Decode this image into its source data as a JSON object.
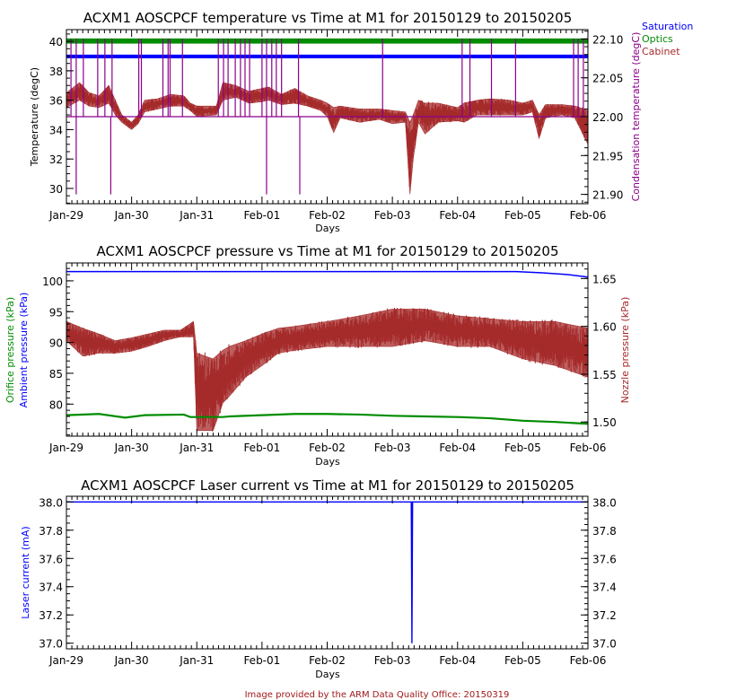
{
  "footer": "Image provided by the ARM Data Quality Office: 20150319",
  "colors": {
    "saturation": "#0000ff",
    "optics": "#008c00",
    "cabinet": "#a52a2a",
    "condensation": "#8b008b",
    "ambient": "#0000ff",
    "orifice": "#008c00",
    "nozzle": "#a52a2a",
    "laser": "#0000ff",
    "footer": "#a01818"
  },
  "chart_data": [
    {
      "type": "line",
      "title": "ACXM1 AOSCPCF temperature vs Time at M1 for 20150129 to 20150205",
      "xlabel": "Days",
      "ylabel": "Temperature (degC)",
      "y2label": "Condensation temperature (degC)",
      "xticks": [
        "Jan-29",
        "Jan-30",
        "Jan-31",
        "Feb-01",
        "Feb-02",
        "Feb-03",
        "Feb-04",
        "Feb-05",
        "Feb-06"
      ],
      "xlim": [
        0,
        8
      ],
      "ylim": [
        28.96,
        40.8
      ],
      "yticks": [
        "30",
        "32",
        "34",
        "36",
        "38",
        "40"
      ],
      "y2lim": [
        21.888,
        22.112
      ],
      "y2ticks": [
        "21.90",
        "21.95",
        "22.00",
        "22.05",
        "22.10"
      ],
      "legend": [
        "Saturation",
        "Optics",
        "Cabinet"
      ],
      "legend_placement": "top-right outside",
      "series": {
        "saturation_band": [
          38.85,
          39.1
        ],
        "optics_band": [
          39.85,
          40.2
        ],
        "cabinet": [
          [
            0,
            35.5,
            36.5
          ],
          [
            0.2,
            36,
            37.2
          ],
          [
            0.35,
            35.6,
            36.5
          ],
          [
            0.5,
            35.5,
            36.3
          ],
          [
            0.65,
            35.8,
            37
          ],
          [
            0.75,
            35,
            36
          ],
          [
            0.85,
            34.5,
            35
          ],
          [
            1.0,
            34,
            34.5
          ],
          [
            1.1,
            34.4,
            35
          ],
          [
            1.2,
            35.2,
            36
          ],
          [
            1.4,
            35.4,
            36.1
          ],
          [
            1.6,
            35.6,
            36.4
          ],
          [
            1.8,
            35.6,
            36.3
          ],
          [
            1.9,
            35.3,
            35.8
          ],
          [
            2.0,
            34.9,
            35.6
          ],
          [
            2.3,
            35,
            35.6
          ],
          [
            2.4,
            36,
            37.2
          ],
          [
            2.6,
            36.2,
            37
          ],
          [
            2.8,
            35.8,
            36.6
          ],
          [
            3.0,
            35.9,
            36.8
          ],
          [
            3.1,
            36,
            36.9
          ],
          [
            3.3,
            35.7,
            36.4
          ],
          [
            3.5,
            35.8,
            36.8
          ],
          [
            3.7,
            35.6,
            36.3
          ],
          [
            3.9,
            35.3,
            36
          ],
          [
            4.0,
            34.9,
            35.8
          ],
          [
            4.1,
            33.8,
            35.5
          ],
          [
            4.2,
            34.8,
            35.6
          ],
          [
            4.5,
            34.5,
            35.4
          ],
          [
            4.8,
            34.7,
            35.4
          ],
          [
            5.0,
            34.4,
            35.3
          ],
          [
            5.2,
            34.5,
            35.2
          ],
          [
            5.27,
            29.6,
            34.5
          ],
          [
            5.32,
            32,
            35
          ],
          [
            5.4,
            34.5,
            36
          ],
          [
            5.5,
            33.7,
            35.8
          ],
          [
            5.7,
            34.5,
            35.8
          ],
          [
            6.0,
            34.6,
            35.5
          ],
          [
            6.1,
            34.5,
            35.8
          ],
          [
            6.3,
            35,
            36
          ],
          [
            6.5,
            35,
            36.1
          ],
          [
            6.8,
            35,
            36
          ],
          [
            7.0,
            35,
            35.8
          ],
          [
            7.15,
            35.2,
            36
          ],
          [
            7.25,
            33.4,
            35
          ],
          [
            7.35,
            34.8,
            35.7
          ],
          [
            7.6,
            35,
            35.7
          ],
          [
            7.8,
            34.8,
            35.6
          ],
          [
            8.0,
            33,
            35.3
          ]
        ],
        "condensation_baseline": 22.0,
        "condensation_spikes_up": [
          0.07,
          0.15,
          0.26,
          0.48,
          0.59,
          0.7,
          1.11,
          1.15,
          1.48,
          1.56,
          1.59,
          1.78,
          2.33,
          2.41,
          2.48,
          2.59,
          2.67,
          2.74,
          2.81,
          3.0,
          3.07,
          3.15,
          3.22,
          3.3,
          3.56,
          4.85,
          6.07,
          6.19,
          6.52,
          6.89,
          7.78,
          7.85,
          7.93
        ],
        "condensation_spikes_down": [
          0.15,
          0.68,
          3.07,
          3.58
        ]
      }
    },
    {
      "type": "line",
      "title": "ACXM1 AOSCPCF pressure vs Time at M1 for 20150129 to 20150205",
      "xlabel": "Days",
      "ylabel": "Ambient pressure (kPa)",
      "ylabel2": "Orifice pressure (kPa)",
      "y2label": "Nozzle pressure (kPa)",
      "xticks": [
        "Jan-29",
        "Jan-30",
        "Jan-31",
        "Feb-01",
        "Feb-02",
        "Feb-03",
        "Feb-04",
        "Feb-05",
        "Feb-06"
      ],
      "xlim": [
        0,
        8
      ],
      "ylim": [
        74.8,
        102.9
      ],
      "yticks": [
        "80",
        "85",
        "90",
        "95",
        "100"
      ],
      "y2lim": [
        1.4852,
        1.6663
      ],
      "y2ticks": [
        "1.50",
        "1.55",
        "1.60",
        "1.65"
      ],
      "series": {
        "ambient": [
          [
            0,
            101.5
          ],
          [
            6.9,
            101.5
          ],
          [
            7.3,
            101.3
          ],
          [
            7.7,
            101.0
          ],
          [
            8.0,
            100.6
          ]
        ],
        "orifice": [
          [
            0,
            78.2
          ],
          [
            0.5,
            78.4
          ],
          [
            0.9,
            77.8
          ],
          [
            1.2,
            78.2
          ],
          [
            1.8,
            78.3
          ],
          [
            1.9,
            77.9
          ],
          [
            2.4,
            77.9
          ],
          [
            2.5,
            78.0
          ],
          [
            3.0,
            78.2
          ],
          [
            3.5,
            78.4
          ],
          [
            4.0,
            78.4
          ],
          [
            4.5,
            78.3
          ],
          [
            5.0,
            78.1
          ],
          [
            5.5,
            78.0
          ],
          [
            6.0,
            77.9
          ],
          [
            6.5,
            77.7
          ],
          [
            7.0,
            77.3
          ],
          [
            7.5,
            77.1
          ],
          [
            8.0,
            76.8
          ]
        ],
        "nozzle": [
          [
            0,
            1.585,
            1.605
          ],
          [
            0.25,
            1.569,
            1.598
          ],
          [
            0.5,
            1.572,
            1.592
          ],
          [
            0.75,
            1.572,
            1.585
          ],
          [
            1.0,
            1.574,
            1.588
          ],
          [
            1.25,
            1.579,
            1.592
          ],
          [
            1.5,
            1.585,
            1.596
          ],
          [
            1.75,
            1.589,
            1.596
          ],
          [
            1.95,
            1.589,
            1.605
          ],
          [
            2.0,
            1.491,
            1.572
          ],
          [
            2.25,
            1.491,
            1.566
          ],
          [
            2.4,
            1.52,
            1.575
          ],
          [
            2.5,
            1.527,
            1.579
          ],
          [
            2.75,
            1.547,
            1.585
          ],
          [
            3.0,
            1.559,
            1.592
          ],
          [
            3.25,
            1.572,
            1.598
          ],
          [
            3.5,
            1.575,
            1.6
          ],
          [
            4.0,
            1.579,
            1.605
          ],
          [
            4.5,
            1.579,
            1.611
          ],
          [
            5.0,
            1.579,
            1.618
          ],
          [
            5.5,
            1.585,
            1.618
          ],
          [
            6.0,
            1.579,
            1.611
          ],
          [
            6.5,
            1.579,
            1.608
          ],
          [
            7.0,
            1.566,
            1.605
          ],
          [
            7.5,
            1.559,
            1.605
          ],
          [
            8.0,
            1.547,
            1.598
          ]
        ]
      }
    },
    {
      "type": "line",
      "title": "ACXM1 AOSCPCF Laser current vs Time at M1 for 20150129 to 20150205",
      "xlabel": "Days",
      "ylabel": "Laser current (mA)",
      "xticks": [
        "Jan-29",
        "Jan-30",
        "Jan-31",
        "Feb-01",
        "Feb-02",
        "Feb-03",
        "Feb-04",
        "Feb-05",
        "Feb-06"
      ],
      "xlim": [
        0,
        8
      ],
      "ylim": [
        36.96,
        38.04
      ],
      "yticks": [
        "37.0",
        "37.2",
        "37.4",
        "37.6",
        "37.8",
        "38.0"
      ],
      "y2ticks": [
        "37.0",
        "37.2",
        "37.4",
        "37.6",
        "37.8",
        "38.0"
      ],
      "series": {
        "laser": [
          [
            0,
            38.0
          ],
          [
            5.29,
            38.0
          ],
          [
            5.3,
            37.0
          ],
          [
            5.31,
            38.0
          ],
          [
            8.0,
            38.0
          ]
        ]
      }
    }
  ]
}
